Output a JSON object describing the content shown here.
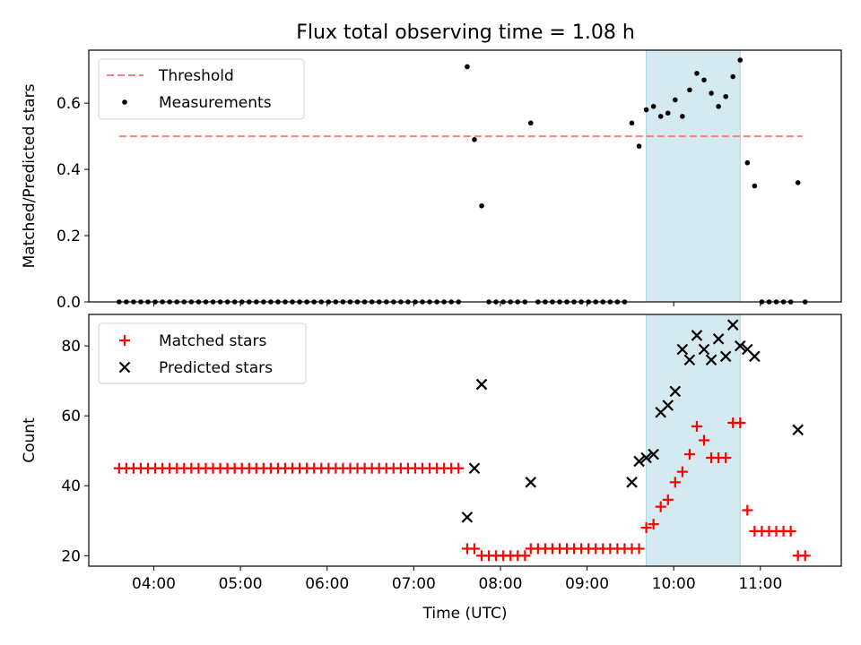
{
  "title": "Flux total observing time = 1.08 h",
  "colors": {
    "threshold": "#ff7f7f",
    "measurement": "#000000",
    "matched": "#ff0000",
    "predicted": "#000000",
    "highlight": "#d4eaf0"
  },
  "chart_data": [
    {
      "type": "scatter",
      "ylabel": "Matched/Predicted stars",
      "xlim": [
        "03:15",
        "11:56"
      ],
      "ylim": [
        0,
        0.76
      ],
      "yticks": [
        0.0,
        0.2,
        0.4,
        0.6
      ],
      "ytick_labels": [
        "0.0",
        "0.2",
        "0.4",
        "0.6"
      ],
      "highlight_span": [
        "09:41",
        "10:46"
      ],
      "legend": {
        "position": "top-left",
        "entries": [
          {
            "label": "Threshold",
            "marker": "dashed-line"
          },
          {
            "label": "Measurements",
            "marker": "dot"
          }
        ]
      },
      "threshold": {
        "name": "Threshold",
        "x": [
          "03:36",
          "11:29"
        ],
        "y": 0.5
      },
      "series": [
        {
          "name": "Measurements",
          "points": [
            [
              "03:36",
              0
            ],
            [
              "03:41",
              0
            ],
            [
              "03:46",
              0
            ],
            [
              "03:51",
              0
            ],
            [
              "03:56",
              0
            ],
            [
              "04:01",
              0
            ],
            [
              "04:06",
              0
            ],
            [
              "04:11",
              0
            ],
            [
              "04:16",
              0
            ],
            [
              "04:21",
              0
            ],
            [
              "04:26",
              0
            ],
            [
              "04:31",
              0
            ],
            [
              "04:36",
              0
            ],
            [
              "04:41",
              0
            ],
            [
              "04:46",
              0
            ],
            [
              "04:51",
              0
            ],
            [
              "04:56",
              0
            ],
            [
              "05:01",
              0
            ],
            [
              "05:06",
              0
            ],
            [
              "05:11",
              0
            ],
            [
              "05:16",
              0
            ],
            [
              "05:21",
              0
            ],
            [
              "05:26",
              0
            ],
            [
              "05:31",
              0
            ],
            [
              "05:36",
              0
            ],
            [
              "05:41",
              0
            ],
            [
              "05:46",
              0
            ],
            [
              "05:51",
              0
            ],
            [
              "05:56",
              0
            ],
            [
              "06:01",
              0
            ],
            [
              "06:06",
              0
            ],
            [
              "06:11",
              0
            ],
            [
              "06:16",
              0
            ],
            [
              "06:21",
              0
            ],
            [
              "06:26",
              0
            ],
            [
              "06:31",
              0
            ],
            [
              "06:36",
              0
            ],
            [
              "06:41",
              0
            ],
            [
              "06:46",
              0
            ],
            [
              "06:51",
              0
            ],
            [
              "06:56",
              0
            ],
            [
              "07:01",
              0
            ],
            [
              "07:06",
              0
            ],
            [
              "07:11",
              0
            ],
            [
              "07:16",
              0
            ],
            [
              "07:21",
              0
            ],
            [
              "07:26",
              0
            ],
            [
              "07:31",
              0
            ],
            [
              "07:37",
              0.71
            ],
            [
              "07:42",
              0.49
            ],
            [
              "07:47",
              0.29
            ],
            [
              "07:52",
              0
            ],
            [
              "07:57",
              0
            ],
            [
              "08:02",
              0
            ],
            [
              "08:07",
              0
            ],
            [
              "08:12",
              0
            ],
            [
              "08:17",
              0
            ],
            [
              "08:21",
              0.54
            ],
            [
              "08:26",
              0
            ],
            [
              "08:31",
              0
            ],
            [
              "08:36",
              0
            ],
            [
              "08:41",
              0
            ],
            [
              "08:46",
              0
            ],
            [
              "08:51",
              0
            ],
            [
              "08:56",
              0
            ],
            [
              "09:01",
              0
            ],
            [
              "09:06",
              0
            ],
            [
              "09:11",
              0
            ],
            [
              "09:16",
              0
            ],
            [
              "09:21",
              0
            ],
            [
              "09:26",
              0
            ],
            [
              "09:31",
              0.54
            ],
            [
              "09:36",
              0.47
            ],
            [
              "09:41",
              0.58
            ],
            [
              "09:46",
              0.59
            ],
            [
              "09:51",
              0.56
            ],
            [
              "09:56",
              0.57
            ],
            [
              "10:01",
              0.61
            ],
            [
              "10:06",
              0.56
            ],
            [
              "10:11",
              0.64
            ],
            [
              "10:16",
              0.69
            ],
            [
              "10:21",
              0.67
            ],
            [
              "10:26",
              0.63
            ],
            [
              "10:31",
              0.59
            ],
            [
              "10:36",
              0.62
            ],
            [
              "10:41",
              0.68
            ],
            [
              "10:46",
              0.73
            ],
            [
              "10:51",
              0.42
            ],
            [
              "10:56",
              0.35
            ],
            [
              "11:01",
              0
            ],
            [
              "11:06",
              0
            ],
            [
              "11:11",
              0
            ],
            [
              "11:16",
              0
            ],
            [
              "11:21",
              0
            ],
            [
              "11:26",
              0.36
            ],
            [
              "11:31",
              0
            ]
          ]
        }
      ]
    },
    {
      "type": "scatter",
      "xlabel": "Time (UTC)",
      "ylabel": "Count",
      "xlim": [
        "03:15",
        "11:56"
      ],
      "ylim": [
        17,
        89
      ],
      "xticks": [
        "04:00",
        "05:00",
        "06:00",
        "07:00",
        "08:00",
        "09:00",
        "10:00",
        "11:00"
      ],
      "yticks": [
        20,
        40,
        60,
        80
      ],
      "ytick_labels": [
        "20",
        "40",
        "60",
        "80"
      ],
      "highlight_span": [
        "09:41",
        "10:46"
      ],
      "legend": {
        "position": "top-left",
        "entries": [
          {
            "label": "Matched stars",
            "marker": "plus"
          },
          {
            "label": "Predicted stars",
            "marker": "x"
          }
        ]
      },
      "series": [
        {
          "name": "Matched stars",
          "points": [
            [
              "03:36",
              45
            ],
            [
              "03:41",
              45
            ],
            [
              "03:46",
              45
            ],
            [
              "03:51",
              45
            ],
            [
              "03:56",
              45
            ],
            [
              "04:01",
              45
            ],
            [
              "04:06",
              45
            ],
            [
              "04:11",
              45
            ],
            [
              "04:16",
              45
            ],
            [
              "04:21",
              45
            ],
            [
              "04:26",
              45
            ],
            [
              "04:31",
              45
            ],
            [
              "04:36",
              45
            ],
            [
              "04:41",
              45
            ],
            [
              "04:46",
              45
            ],
            [
              "04:51",
              45
            ],
            [
              "04:56",
              45
            ],
            [
              "05:01",
              45
            ],
            [
              "05:06",
              45
            ],
            [
              "05:11",
              45
            ],
            [
              "05:16",
              45
            ],
            [
              "05:21",
              45
            ],
            [
              "05:26",
              45
            ],
            [
              "05:31",
              45
            ],
            [
              "05:36",
              45
            ],
            [
              "05:41",
              45
            ],
            [
              "05:46",
              45
            ],
            [
              "05:51",
              45
            ],
            [
              "05:56",
              45
            ],
            [
              "06:01",
              45
            ],
            [
              "06:06",
              45
            ],
            [
              "06:11",
              45
            ],
            [
              "06:16",
              45
            ],
            [
              "06:21",
              45
            ],
            [
              "06:26",
              45
            ],
            [
              "06:31",
              45
            ],
            [
              "06:36",
              45
            ],
            [
              "06:41",
              45
            ],
            [
              "06:46",
              45
            ],
            [
              "06:51",
              45
            ],
            [
              "06:56",
              45
            ],
            [
              "07:01",
              45
            ],
            [
              "07:06",
              45
            ],
            [
              "07:11",
              45
            ],
            [
              "07:16",
              45
            ],
            [
              "07:21",
              45
            ],
            [
              "07:26",
              45
            ],
            [
              "07:31",
              45
            ],
            [
              "07:37",
              22
            ],
            [
              "07:42",
              22
            ],
            [
              "07:47",
              20
            ],
            [
              "07:52",
              20
            ],
            [
              "07:57",
              20
            ],
            [
              "08:02",
              20
            ],
            [
              "08:07",
              20
            ],
            [
              "08:12",
              20
            ],
            [
              "08:17",
              20
            ],
            [
              "08:21",
              22
            ],
            [
              "08:26",
              22
            ],
            [
              "08:31",
              22
            ],
            [
              "08:36",
              22
            ],
            [
              "08:41",
              22
            ],
            [
              "08:46",
              22
            ],
            [
              "08:51",
              22
            ],
            [
              "08:56",
              22
            ],
            [
              "09:01",
              22
            ],
            [
              "09:06",
              22
            ],
            [
              "09:11",
              22
            ],
            [
              "09:16",
              22
            ],
            [
              "09:21",
              22
            ],
            [
              "09:26",
              22
            ],
            [
              "09:31",
              22
            ],
            [
              "09:36",
              22
            ],
            [
              "09:41",
              28
            ],
            [
              "09:46",
              29
            ],
            [
              "09:51",
              34
            ],
            [
              "09:56",
              36
            ],
            [
              "10:01",
              41
            ],
            [
              "10:06",
              44
            ],
            [
              "10:11",
              49
            ],
            [
              "10:16",
              57
            ],
            [
              "10:21",
              53
            ],
            [
              "10:26",
              48
            ],
            [
              "10:31",
              48
            ],
            [
              "10:36",
              48
            ],
            [
              "10:41",
              58
            ],
            [
              "10:46",
              58
            ],
            [
              "10:51",
              33
            ],
            [
              "10:56",
              27
            ],
            [
              "11:01",
              27
            ],
            [
              "11:06",
              27
            ],
            [
              "11:11",
              27
            ],
            [
              "11:16",
              27
            ],
            [
              "11:21",
              27
            ],
            [
              "11:26",
              20
            ],
            [
              "11:31",
              20
            ]
          ]
        },
        {
          "name": "Predicted stars",
          "points": [
            [
              "07:37",
              31
            ],
            [
              "07:42",
              45
            ],
            [
              "07:47",
              69
            ],
            [
              "08:21",
              41
            ],
            [
              "09:31",
              41
            ],
            [
              "09:36",
              47
            ],
            [
              "09:41",
              48
            ],
            [
              "09:46",
              49
            ],
            [
              "09:51",
              61
            ],
            [
              "09:56",
              63
            ],
            [
              "10:01",
              67
            ],
            [
              "10:06",
              79
            ],
            [
              "10:11",
              76
            ],
            [
              "10:16",
              83
            ],
            [
              "10:21",
              79
            ],
            [
              "10:26",
              76
            ],
            [
              "10:31",
              82
            ],
            [
              "10:36",
              77
            ],
            [
              "10:41",
              86
            ],
            [
              "10:46",
              80
            ],
            [
              "10:51",
              79
            ],
            [
              "10:56",
              77
            ],
            [
              "11:26",
              56
            ]
          ]
        }
      ]
    }
  ]
}
